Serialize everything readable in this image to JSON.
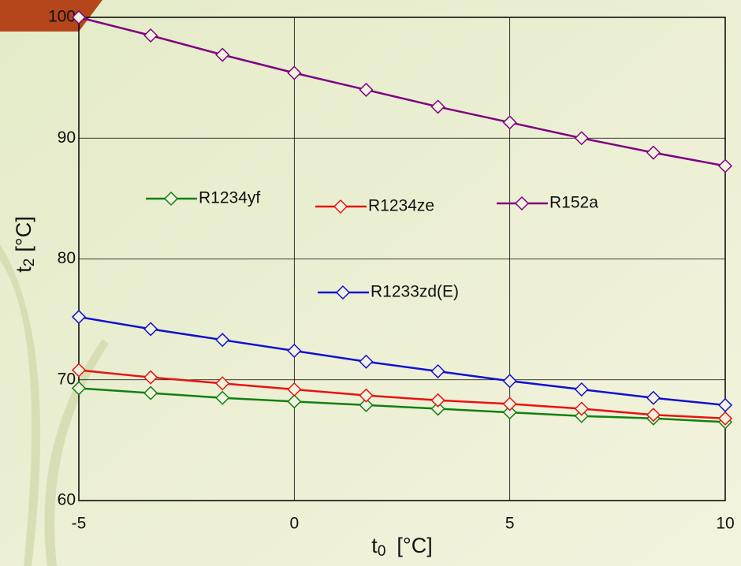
{
  "chart_data": {
    "type": "line",
    "xlabel": [
      "t",
      "0",
      "[°C]"
    ],
    "ylabel": [
      "t",
      "2",
      "[°C]"
    ],
    "x": [
      -5,
      -3.333,
      -1.667,
      0,
      1.667,
      3.333,
      5,
      6.667,
      8.333,
      10
    ],
    "series": [
      {
        "name": "R1234yf",
        "color": "#108010",
        "values": [
          69.3,
          68.9,
          68.5,
          68.2,
          67.9,
          67.6,
          67.3,
          67.0,
          66.8,
          66.5
        ]
      },
      {
        "name": "R1234ze",
        "color": "#e8130f",
        "values": [
          70.8,
          70.2,
          69.7,
          69.2,
          68.7,
          68.3,
          68.0,
          67.6,
          67.1,
          66.8
        ]
      },
      {
        "name": "R152a",
        "color": "#800080",
        "values": [
          100,
          98.5,
          96.9,
          95.4,
          94.0,
          92.6,
          91.3,
          90.0,
          88.8,
          87.7
        ]
      },
      {
        "name": "R1233zd(E)",
        "color": "#1010d0",
        "values": [
          75.2,
          74.2,
          73.3,
          72.4,
          71.5,
          70.7,
          69.9,
          69.2,
          68.5,
          67.9
        ]
      }
    ],
    "xlim": [
      -5,
      10
    ],
    "xticks": [
      -5,
      0,
      5,
      10
    ],
    "ylim": [
      60,
      100
    ],
    "yticks": [
      60,
      70,
      80,
      90,
      100
    ],
    "grid": true
  }
}
